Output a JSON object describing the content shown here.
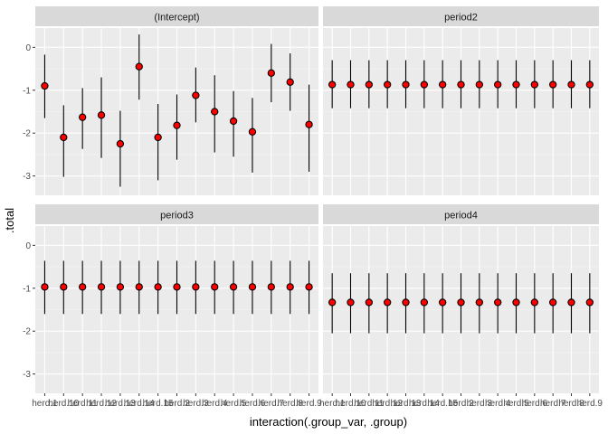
{
  "chart_data": {
    "type": "scatter",
    "subtype": "pointrange-facet",
    "xlabel": "interaction(.group_var, .group)",
    "ylabel": ".total",
    "ylim": [
      -3.45,
      0.45
    ],
    "yticks": [
      0,
      -1,
      -2,
      -3
    ],
    "ytick_labels": [
      "0",
      "-1",
      "-2",
      "-3"
    ],
    "categories": [
      "herd.1",
      "herd.10",
      "herd.11",
      "herd.12",
      "herd.13",
      "herd.14",
      "herd.15",
      "herd.2",
      "herd.3",
      "herd.4",
      "herd.5",
      "herd.6",
      "herd.7",
      "herd.8",
      "herd.9"
    ],
    "grid": true,
    "point_color": "#ff0000",
    "panels": [
      {
        "title": "(Intercept)",
        "points": [
          {
            "y": -0.9,
            "lo": -1.65,
            "hi": -0.17
          },
          {
            "y": -2.1,
            "lo": -3.02,
            "hi": -1.35
          },
          {
            "y": -1.63,
            "lo": -2.37,
            "hi": -0.95
          },
          {
            "y": -1.58,
            "lo": -2.58,
            "hi": -0.7
          },
          {
            "y": -2.25,
            "lo": -3.25,
            "hi": -1.48
          },
          {
            "y": -0.45,
            "lo": -1.22,
            "hi": 0.3
          },
          {
            "y": -2.1,
            "lo": -3.1,
            "hi": -1.32
          },
          {
            "y": -1.82,
            "lo": -2.62,
            "hi": -1.1
          },
          {
            "y": -1.12,
            "lo": -1.75,
            "hi": -0.47
          },
          {
            "y": -1.5,
            "lo": -2.45,
            "hi": -0.65
          },
          {
            "y": -1.72,
            "lo": -2.55,
            "hi": -1.02
          },
          {
            "y": -1.97,
            "lo": -2.92,
            "hi": -1.18
          },
          {
            "y": -0.6,
            "lo": -1.28,
            "hi": 0.08
          },
          {
            "y": -0.81,
            "lo": -1.48,
            "hi": -0.14
          },
          {
            "y": -1.8,
            "lo": -2.9,
            "hi": -0.87
          }
        ]
      },
      {
        "title": "period2",
        "points": [
          {
            "y": -0.87,
            "lo": -1.42,
            "hi": -0.3
          },
          {
            "y": -0.87,
            "lo": -1.42,
            "hi": -0.3
          },
          {
            "y": -0.87,
            "lo": -1.42,
            "hi": -0.3
          },
          {
            "y": -0.87,
            "lo": -1.42,
            "hi": -0.3
          },
          {
            "y": -0.87,
            "lo": -1.42,
            "hi": -0.3
          },
          {
            "y": -0.87,
            "lo": -1.42,
            "hi": -0.3
          },
          {
            "y": -0.87,
            "lo": -1.42,
            "hi": -0.3
          },
          {
            "y": -0.87,
            "lo": -1.42,
            "hi": -0.3
          },
          {
            "y": -0.87,
            "lo": -1.42,
            "hi": -0.3
          },
          {
            "y": -0.87,
            "lo": -1.42,
            "hi": -0.3
          },
          {
            "y": -0.87,
            "lo": -1.42,
            "hi": -0.3
          },
          {
            "y": -0.87,
            "lo": -1.42,
            "hi": -0.3
          },
          {
            "y": -0.87,
            "lo": -1.42,
            "hi": -0.3
          },
          {
            "y": -0.87,
            "lo": -1.42,
            "hi": -0.3
          },
          {
            "y": -0.87,
            "lo": -1.42,
            "hi": -0.3
          }
        ]
      },
      {
        "title": "period3",
        "points": [
          {
            "y": -0.97,
            "lo": -1.6,
            "hi": -0.36
          },
          {
            "y": -0.97,
            "lo": -1.6,
            "hi": -0.36
          },
          {
            "y": -0.97,
            "lo": -1.6,
            "hi": -0.36
          },
          {
            "y": -0.97,
            "lo": -1.6,
            "hi": -0.36
          },
          {
            "y": -0.97,
            "lo": -1.6,
            "hi": -0.36
          },
          {
            "y": -0.97,
            "lo": -1.6,
            "hi": -0.36
          },
          {
            "y": -0.97,
            "lo": -1.6,
            "hi": -0.36
          },
          {
            "y": -0.97,
            "lo": -1.6,
            "hi": -0.36
          },
          {
            "y": -0.97,
            "lo": -1.6,
            "hi": -0.36
          },
          {
            "y": -0.97,
            "lo": -1.6,
            "hi": -0.36
          },
          {
            "y": -0.97,
            "lo": -1.6,
            "hi": -0.36
          },
          {
            "y": -0.97,
            "lo": -1.6,
            "hi": -0.36
          },
          {
            "y": -0.97,
            "lo": -1.6,
            "hi": -0.36
          },
          {
            "y": -0.97,
            "lo": -1.6,
            "hi": -0.36
          },
          {
            "y": -0.97,
            "lo": -1.6,
            "hi": -0.36
          }
        ]
      },
      {
        "title": "period4",
        "points": [
          {
            "y": -1.33,
            "lo": -2.05,
            "hi": -0.65
          },
          {
            "y": -1.33,
            "lo": -2.05,
            "hi": -0.65
          },
          {
            "y": -1.33,
            "lo": -2.05,
            "hi": -0.65
          },
          {
            "y": -1.33,
            "lo": -2.05,
            "hi": -0.65
          },
          {
            "y": -1.33,
            "lo": -2.05,
            "hi": -0.65
          },
          {
            "y": -1.33,
            "lo": -2.05,
            "hi": -0.65
          },
          {
            "y": -1.33,
            "lo": -2.05,
            "hi": -0.65
          },
          {
            "y": -1.33,
            "lo": -2.05,
            "hi": -0.65
          },
          {
            "y": -1.33,
            "lo": -2.05,
            "hi": -0.65
          },
          {
            "y": -1.33,
            "lo": -2.05,
            "hi": -0.65
          },
          {
            "y": -1.33,
            "lo": -2.05,
            "hi": -0.65
          },
          {
            "y": -1.33,
            "lo": -2.05,
            "hi": -0.65
          },
          {
            "y": -1.33,
            "lo": -2.05,
            "hi": -0.65
          },
          {
            "y": -1.33,
            "lo": -2.05,
            "hi": -0.65
          },
          {
            "y": -1.33,
            "lo": -2.05,
            "hi": -0.65
          }
        ]
      }
    ]
  }
}
